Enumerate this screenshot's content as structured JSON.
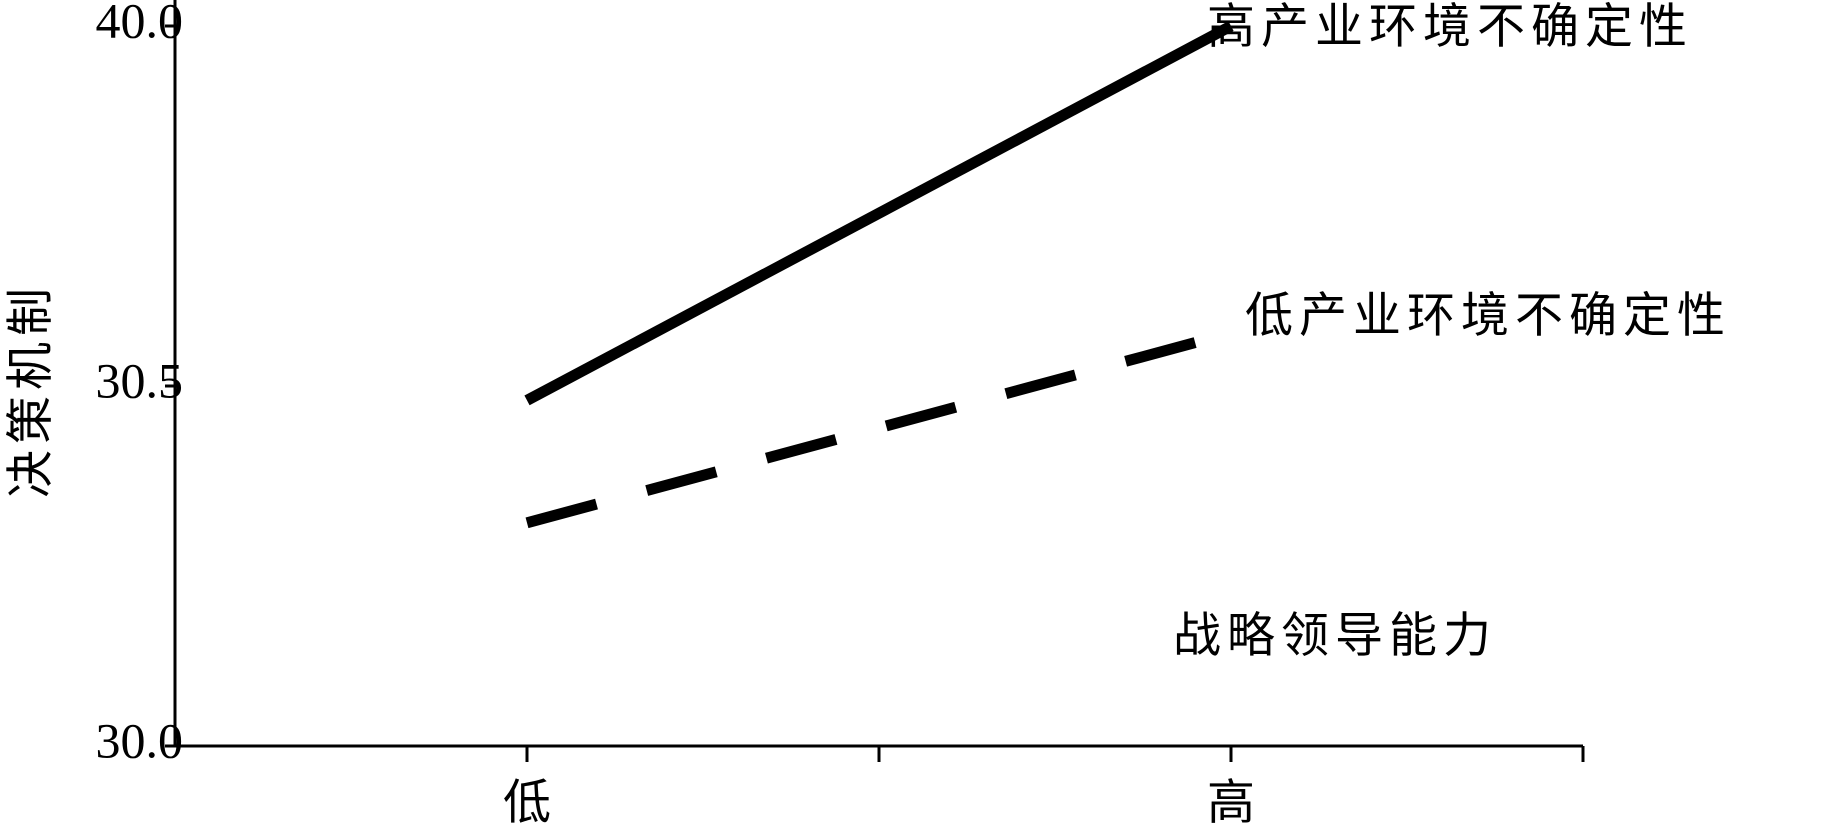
{
  "chart_data": {
    "type": "line",
    "y_label": "决策机制",
    "annotation": "战略领导能力",
    "categories": [
      "低",
      "高"
    ],
    "series": [
      {
        "name": "高产业环境不确定性",
        "color": "#000000",
        "style": "solid",
        "values": [
          30.48,
          40.0
        ]
      },
      {
        "name": "低产业环境不确定性",
        "color": "#000000",
        "style": "dashed",
        "values": [
          30.31,
          31.9
        ]
      }
    ],
    "ylim": [
      30,
      40
    ],
    "yticks": [
      {
        "value": 30,
        "label": "30.0"
      },
      {
        "value": 30.5,
        "label": "30.5"
      },
      {
        "value": 40,
        "label": "40.0"
      }
    ]
  }
}
